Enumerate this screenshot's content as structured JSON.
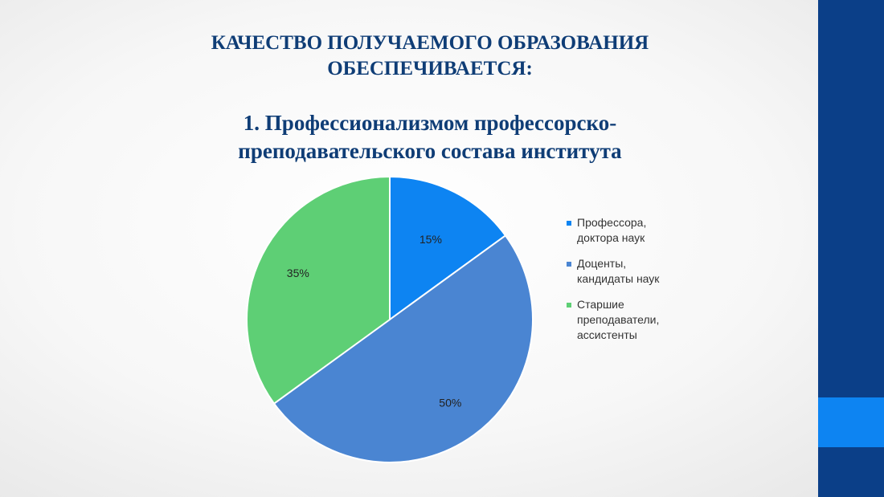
{
  "slide": {
    "title_line1": "КАЧЕСТВО ПОЛУЧАЕМОГО ОБРАЗОВАНИЯ",
    "title_line2": "ОБЕСПЕЧИВАЕТСЯ:",
    "subtitle_line1": "1. Профессионализмом профессорско-",
    "subtitle_line2": "преподавательского  состава института"
  },
  "chart_data": {
    "type": "pie",
    "categories": [
      "Профессора, доктора наук",
      "Доценты, кандидаты наук",
      "Старшие преподаватели, ассистенты"
    ],
    "values": [
      15,
      50,
      35
    ],
    "data_labels": [
      "15%",
      "50%",
      "35%"
    ],
    "colors": [
      "#0d84f2",
      "#4a85d2",
      "#5ecf75"
    ],
    "legend_placement": "right",
    "legend_lines": [
      [
        "Профессора,",
        "доктора наук"
      ],
      [
        "Доценты,",
        "кандидаты наук"
      ],
      [
        "Старшие",
        "преподаватели,",
        "ассистенты"
      ]
    ]
  }
}
